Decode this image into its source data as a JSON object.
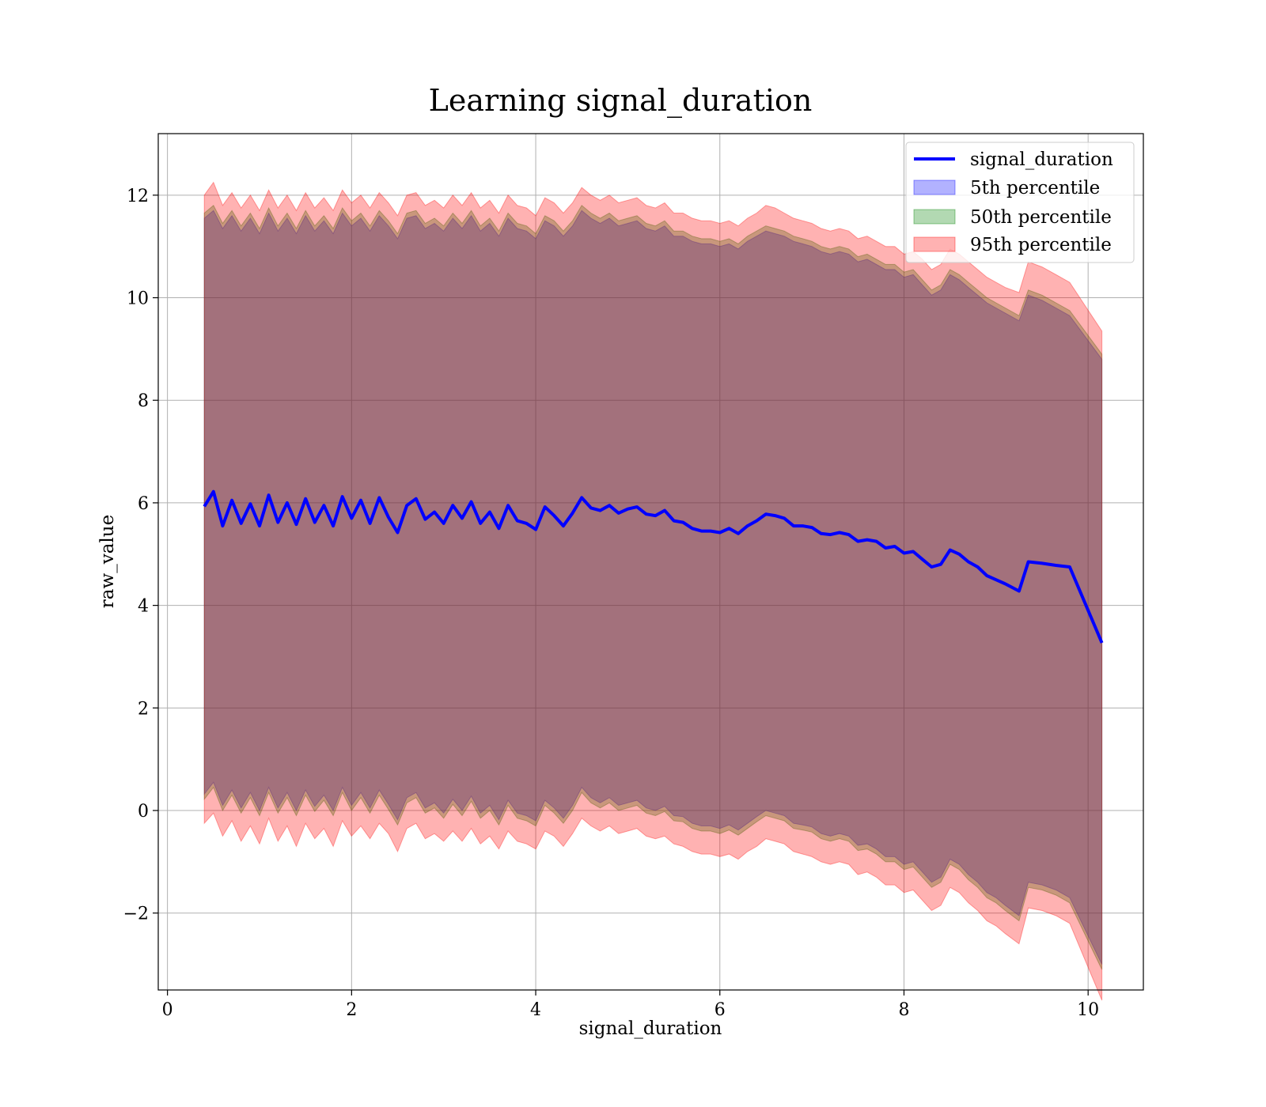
{
  "chart_data": {
    "type": "area",
    "title": "Learning signal_duration",
    "xlabel": "signal_duration",
    "ylabel": "raw_value",
    "xlim": [
      -0.1,
      10.6
    ],
    "ylim": [
      -3.5,
      13.2
    ],
    "xticks": [
      0,
      2,
      4,
      6,
      8,
      10
    ],
    "xtick_labels": [
      "0",
      "2",
      "4",
      "6",
      "8",
      "10"
    ],
    "yticks": [
      -2,
      0,
      2,
      4,
      6,
      8,
      10,
      12
    ],
    "ytick_labels": [
      "−2",
      "0",
      "2",
      "4",
      "6",
      "8",
      "10",
      "12"
    ],
    "grid": true,
    "legend_position": "top-right",
    "x": [
      0.4,
      0.5,
      0.6,
      0.7,
      0.8,
      0.9,
      1.0,
      1.1,
      1.2,
      1.3,
      1.4,
      1.5,
      1.6,
      1.7,
      1.8,
      1.9,
      2.0,
      2.1,
      2.2,
      2.3,
      2.4,
      2.5,
      2.6,
      2.7,
      2.8,
      2.9,
      3.0,
      3.1,
      3.2,
      3.3,
      3.4,
      3.5,
      3.6,
      3.7,
      3.8,
      3.9,
      4.0,
      4.1,
      4.2,
      4.3,
      4.4,
      4.5,
      4.6,
      4.7,
      4.8,
      4.9,
      5.0,
      5.1,
      5.2,
      5.3,
      5.4,
      5.5,
      5.6,
      5.7,
      5.8,
      5.9,
      6.0,
      6.1,
      6.2,
      6.3,
      6.4,
      6.5,
      6.6,
      6.7,
      6.8,
      6.9,
      7.0,
      7.1,
      7.2,
      7.3,
      7.4,
      7.5,
      7.6,
      7.7,
      7.8,
      7.9,
      8.0,
      8.1,
      8.2,
      8.3,
      8.4,
      8.5,
      8.6,
      8.7,
      8.8,
      8.9,
      9.0,
      9.1,
      9.25,
      9.35,
      9.5,
      9.65,
      9.8,
      10.15
    ],
    "series": [
      {
        "name": "signal_duration",
        "kind": "line",
        "color": "#0000ff",
        "values": [
          5.93,
          6.22,
          5.55,
          6.05,
          5.6,
          5.98,
          5.55,
          6.15,
          5.62,
          6.0,
          5.58,
          6.08,
          5.62,
          5.95,
          5.55,
          6.12,
          5.7,
          6.05,
          5.6,
          6.1,
          5.72,
          5.42,
          5.95,
          6.08,
          5.68,
          5.82,
          5.6,
          5.95,
          5.7,
          6.02,
          5.6,
          5.82,
          5.5,
          5.95,
          5.65,
          5.6,
          5.48,
          5.92,
          5.75,
          5.55,
          5.8,
          6.1,
          5.9,
          5.85,
          5.95,
          5.8,
          5.88,
          5.92,
          5.78,
          5.75,
          5.85,
          5.65,
          5.62,
          5.5,
          5.45,
          5.45,
          5.42,
          5.5,
          5.4,
          5.55,
          5.65,
          5.78,
          5.75,
          5.7,
          5.55,
          5.55,
          5.52,
          5.4,
          5.38,
          5.42,
          5.38,
          5.25,
          5.28,
          5.25,
          5.12,
          5.15,
          5.02,
          5.05,
          4.9,
          4.75,
          4.8,
          5.08,
          5.0,
          4.85,
          4.75,
          4.58,
          4.5,
          4.42,
          4.28,
          4.85,
          4.82,
          4.78,
          4.75,
          3.27
        ]
      },
      {
        "name": "5th percentile",
        "kind": "band",
        "color": "#0000ff",
        "upper": [
          11.55,
          11.7,
          11.35,
          11.6,
          11.3,
          11.55,
          11.25,
          11.65,
          11.3,
          11.55,
          11.25,
          11.6,
          11.3,
          11.5,
          11.25,
          11.65,
          11.4,
          11.55,
          11.3,
          11.6,
          11.4,
          11.15,
          11.55,
          11.6,
          11.35,
          11.45,
          11.3,
          11.55,
          11.35,
          11.6,
          11.3,
          11.45,
          11.2,
          11.55,
          11.35,
          11.3,
          11.15,
          11.5,
          11.4,
          11.2,
          11.4,
          11.7,
          11.55,
          11.45,
          11.55,
          11.4,
          11.45,
          11.5,
          11.35,
          11.3,
          11.4,
          11.2,
          11.2,
          11.1,
          11.05,
          11.05,
          11.0,
          11.05,
          10.95,
          11.1,
          11.2,
          11.3,
          11.25,
          11.2,
          11.1,
          11.05,
          11.0,
          10.9,
          10.85,
          10.9,
          10.85,
          10.7,
          10.75,
          10.65,
          10.55,
          10.55,
          10.4,
          10.45,
          10.25,
          10.05,
          10.15,
          10.45,
          10.35,
          10.2,
          10.05,
          9.9,
          9.8,
          9.7,
          9.55,
          10.05,
          9.95,
          9.8,
          9.65,
          8.8
        ],
        "lower": [
          0.32,
          0.55,
          0.1,
          0.4,
          0.05,
          0.35,
          0.0,
          0.45,
          0.05,
          0.35,
          0.0,
          0.4,
          0.08,
          0.3,
          0.0,
          0.45,
          0.1,
          0.35,
          0.05,
          0.4,
          0.12,
          -0.18,
          0.25,
          0.35,
          0.05,
          0.15,
          -0.05,
          0.22,
          0.0,
          0.28,
          -0.05,
          0.1,
          -0.18,
          0.2,
          -0.05,
          -0.1,
          -0.2,
          0.2,
          0.05,
          -0.15,
          0.1,
          0.45,
          0.25,
          0.15,
          0.25,
          0.1,
          0.15,
          0.2,
          0.05,
          0.0,
          0.08,
          -0.1,
          -0.12,
          -0.25,
          -0.3,
          -0.3,
          -0.35,
          -0.28,
          -0.38,
          -0.25,
          -0.12,
          0.0,
          -0.05,
          -0.1,
          -0.25,
          -0.28,
          -0.32,
          -0.45,
          -0.5,
          -0.45,
          -0.5,
          -0.68,
          -0.65,
          -0.75,
          -0.9,
          -0.9,
          -1.05,
          -1.0,
          -1.2,
          -1.4,
          -1.3,
          -0.95,
          -1.05,
          -1.25,
          -1.4,
          -1.6,
          -1.7,
          -1.85,
          -2.05,
          -1.4,
          -1.45,
          -1.55,
          -1.7,
          -3.0
        ]
      },
      {
        "name": "50th percentile",
        "kind": "band",
        "color": "#008000",
        "upper": [
          11.65,
          11.8,
          11.45,
          11.7,
          11.4,
          11.65,
          11.35,
          11.75,
          11.4,
          11.65,
          11.35,
          11.7,
          11.4,
          11.6,
          11.35,
          11.75,
          11.5,
          11.65,
          11.4,
          11.7,
          11.5,
          11.25,
          11.65,
          11.7,
          11.45,
          11.55,
          11.4,
          11.65,
          11.45,
          11.7,
          11.4,
          11.55,
          11.3,
          11.65,
          11.45,
          11.4,
          11.25,
          11.6,
          11.5,
          11.3,
          11.5,
          11.8,
          11.65,
          11.55,
          11.65,
          11.5,
          11.55,
          11.6,
          11.45,
          11.4,
          11.5,
          11.3,
          11.3,
          11.2,
          11.15,
          11.15,
          11.1,
          11.15,
          11.05,
          11.2,
          11.3,
          11.4,
          11.35,
          11.3,
          11.2,
          11.15,
          11.1,
          11.0,
          10.95,
          11.0,
          10.95,
          10.8,
          10.85,
          10.75,
          10.65,
          10.65,
          10.5,
          10.55,
          10.35,
          10.15,
          10.25,
          10.55,
          10.45,
          10.3,
          10.15,
          10.0,
          9.9,
          9.8,
          9.65,
          10.15,
          10.05,
          9.9,
          9.75,
          8.9
        ],
        "lower": [
          0.22,
          0.45,
          0.0,
          0.3,
          -0.05,
          0.25,
          -0.1,
          0.35,
          -0.05,
          0.25,
          -0.1,
          0.3,
          -0.02,
          0.2,
          -0.1,
          0.35,
          0.0,
          0.25,
          -0.05,
          0.3,
          0.02,
          -0.28,
          0.15,
          0.25,
          -0.05,
          0.05,
          -0.15,
          0.12,
          -0.1,
          0.18,
          -0.15,
          0.0,
          -0.28,
          0.1,
          -0.15,
          -0.2,
          -0.3,
          0.1,
          -0.05,
          -0.25,
          0.0,
          0.35,
          0.15,
          0.05,
          0.15,
          0.0,
          0.05,
          0.1,
          -0.05,
          -0.1,
          -0.02,
          -0.2,
          -0.22,
          -0.35,
          -0.4,
          -0.4,
          -0.45,
          -0.38,
          -0.48,
          -0.35,
          -0.22,
          -0.1,
          -0.15,
          -0.2,
          -0.35,
          -0.38,
          -0.42,
          -0.55,
          -0.6,
          -0.55,
          -0.6,
          -0.78,
          -0.75,
          -0.85,
          -1.0,
          -1.0,
          -1.15,
          -1.1,
          -1.3,
          -1.5,
          -1.4,
          -1.05,
          -1.15,
          -1.35,
          -1.5,
          -1.7,
          -1.8,
          -1.95,
          -2.15,
          -1.5,
          -1.55,
          -1.65,
          -1.8,
          -3.1
        ]
      },
      {
        "name": "95th percentile",
        "kind": "band",
        "color": "#ff0000",
        "upper": [
          12.0,
          12.25,
          11.8,
          12.05,
          11.75,
          12.0,
          11.7,
          12.1,
          11.75,
          12.0,
          11.7,
          12.05,
          11.75,
          11.95,
          11.7,
          12.1,
          11.85,
          12.0,
          11.75,
          12.05,
          11.85,
          11.6,
          12.0,
          12.05,
          11.8,
          11.9,
          11.75,
          12.0,
          11.8,
          12.05,
          11.75,
          11.9,
          11.65,
          12.0,
          11.8,
          11.75,
          11.6,
          11.95,
          11.85,
          11.65,
          11.85,
          12.15,
          12.0,
          11.9,
          12.0,
          11.85,
          11.9,
          11.95,
          11.8,
          11.75,
          11.85,
          11.65,
          11.65,
          11.55,
          11.5,
          11.5,
          11.45,
          11.5,
          11.4,
          11.55,
          11.65,
          11.8,
          11.75,
          11.65,
          11.55,
          11.5,
          11.45,
          11.35,
          11.3,
          11.35,
          11.3,
          11.15,
          11.2,
          11.1,
          11.0,
          11.0,
          10.85,
          10.9,
          10.75,
          10.55,
          10.65,
          10.95,
          10.85,
          10.7,
          10.55,
          10.4,
          10.3,
          10.2,
          10.1,
          10.7,
          10.6,
          10.45,
          10.3,
          9.35
        ],
        "lower": [
          -0.25,
          -0.05,
          -0.5,
          -0.2,
          -0.6,
          -0.3,
          -0.65,
          -0.15,
          -0.6,
          -0.3,
          -0.7,
          -0.25,
          -0.55,
          -0.35,
          -0.7,
          -0.2,
          -0.5,
          -0.3,
          -0.55,
          -0.25,
          -0.45,
          -0.8,
          -0.35,
          -0.25,
          -0.55,
          -0.45,
          -0.6,
          -0.4,
          -0.6,
          -0.35,
          -0.65,
          -0.5,
          -0.75,
          -0.4,
          -0.6,
          -0.65,
          -0.75,
          -0.4,
          -0.5,
          -0.7,
          -0.45,
          -0.15,
          -0.3,
          -0.4,
          -0.3,
          -0.45,
          -0.4,
          -0.35,
          -0.5,
          -0.55,
          -0.5,
          -0.65,
          -0.7,
          -0.8,
          -0.85,
          -0.85,
          -0.9,
          -0.85,
          -0.95,
          -0.8,
          -0.7,
          -0.55,
          -0.6,
          -0.65,
          -0.8,
          -0.85,
          -0.9,
          -1.0,
          -1.05,
          -1.0,
          -1.05,
          -1.25,
          -1.2,
          -1.3,
          -1.45,
          -1.45,
          -1.6,
          -1.55,
          -1.75,
          -1.95,
          -1.85,
          -1.5,
          -1.6,
          -1.8,
          -1.95,
          -2.15,
          -2.25,
          -2.4,
          -2.6,
          -1.9,
          -1.95,
          -2.05,
          -2.2,
          -3.7
        ]
      }
    ],
    "colors": {
      "band_5th_alpha": 0.3,
      "band_50th_alpha": 0.3,
      "band_95th_alpha": 0.3,
      "line_width": 4
    }
  }
}
